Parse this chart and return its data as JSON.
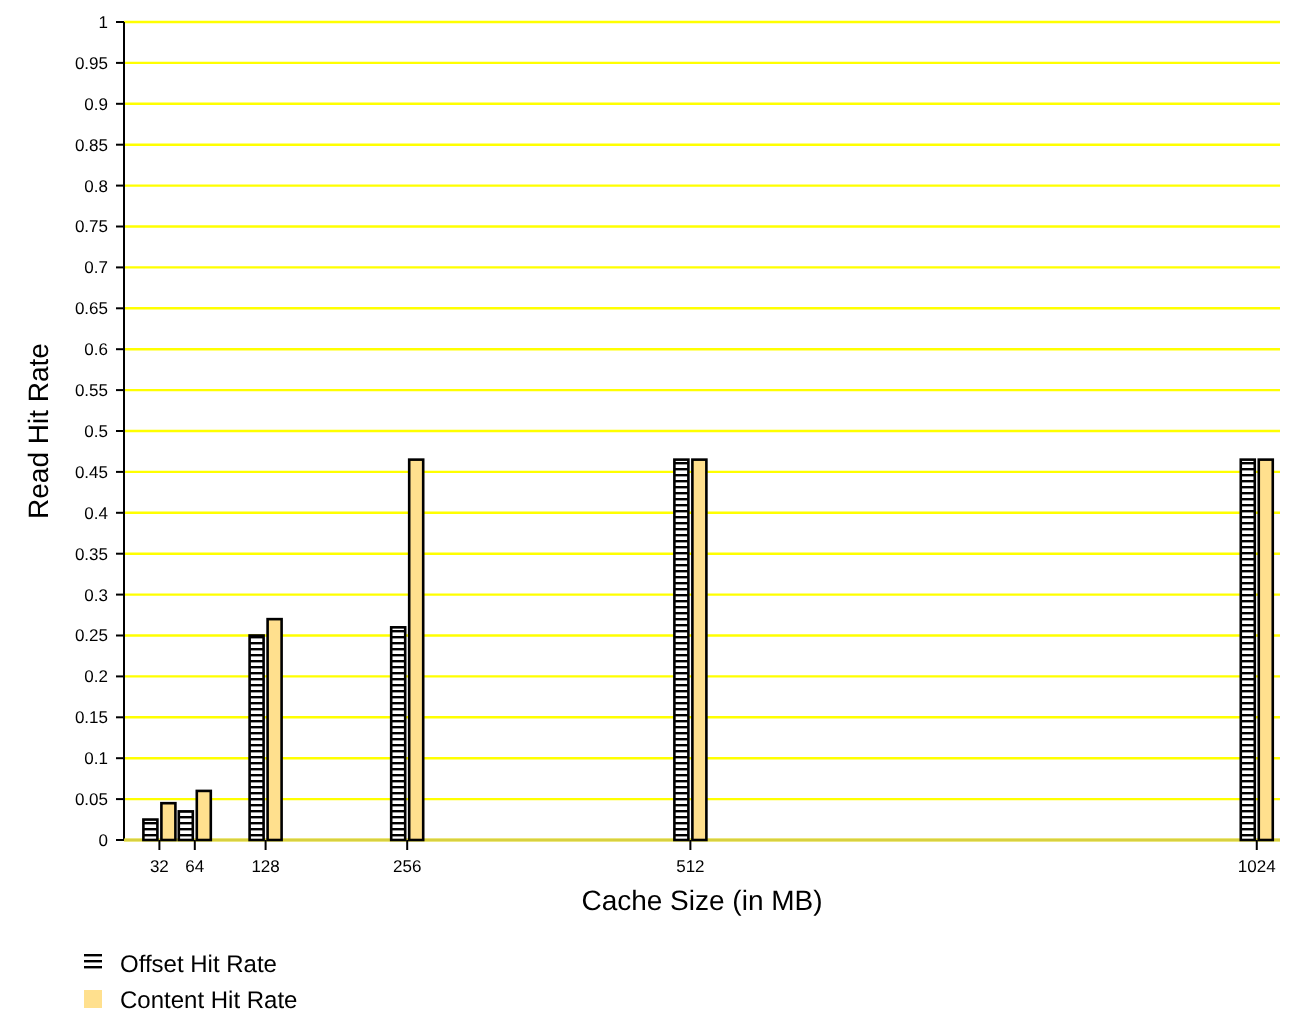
{
  "chart_data": {
    "type": "bar",
    "xlabel": "Cache Size (in MB)",
    "ylabel": "Read Hit Rate",
    "x": [
      32,
      64,
      128,
      256,
      512,
      1024
    ],
    "series": [
      {
        "name": "Offset Hit Rate",
        "color": "#000000",
        "values": [
          0.025,
          0.035,
          0.25,
          0.26,
          0.465,
          0.465
        ]
      },
      {
        "name": "Content Hit Rate",
        "color": "#ffe08e",
        "values": [
          0.045,
          0.06,
          0.27,
          0.465,
          0.465,
          0.465
        ]
      }
    ],
    "xlim": [
      0,
      1045
    ],
    "xticks": [
      32,
      64,
      128,
      256,
      512,
      1024
    ],
    "ylim": [
      0,
      1
    ],
    "yticks": [
      0,
      0.05,
      0.1,
      0.15,
      0.2,
      0.25,
      0.3,
      0.35,
      0.4,
      0.45,
      0.5,
      0.55,
      0.6,
      0.65,
      0.7,
      0.75,
      0.8,
      0.85,
      0.9,
      0.95,
      1
    ],
    "grid": "y",
    "legend": "bottom left"
  }
}
